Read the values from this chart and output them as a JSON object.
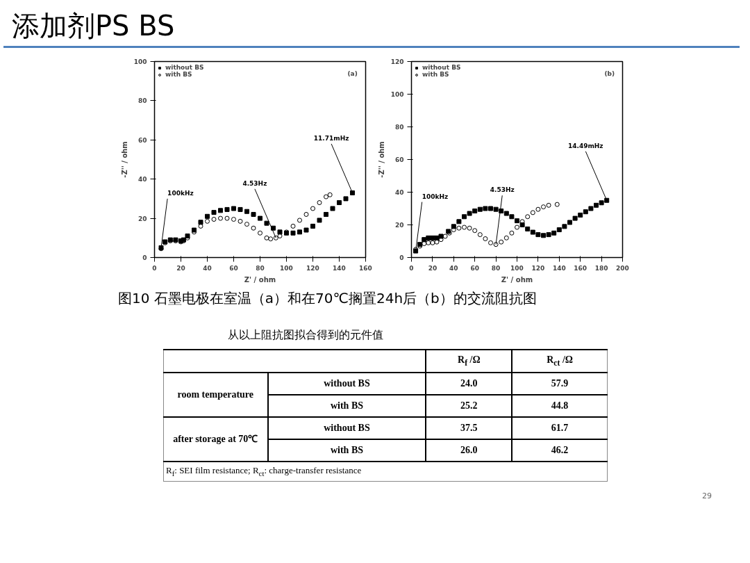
{
  "chart_data": [
    {
      "type": "scatter",
      "title": "添加剂PS BS",
      "xlabel": "Z' / ohm",
      "ylabel": "-Z'' / ohm",
      "xlim": [
        0,
        160
      ],
      "ylim": [
        0,
        100
      ],
      "xticks": [
        0,
        20,
        40,
        60,
        80,
        100,
        120,
        140,
        160
      ],
      "yticks": [
        0,
        20,
        40,
        60,
        80,
        100
      ],
      "grid": false,
      "legend": "top left",
      "series": [
        {
          "name": "without BS",
          "color": "#000000",
          "marker": "square",
          "x": [
            5,
            8,
            12,
            16,
            20,
            22,
            25,
            30,
            35,
            40,
            45,
            50,
            55,
            60,
            65,
            70,
            75,
            80,
            85,
            90,
            95,
            100,
            105,
            110,
            115,
            120,
            125,
            130,
            135,
            140,
            145,
            150
          ],
          "values": [
            5,
            8,
            9,
            9,
            8.5,
            9,
            11,
            14,
            18,
            21,
            23,
            24,
            24.5,
            25,
            24.5,
            23.5,
            22,
            20,
            17.5,
            15,
            13,
            12.5,
            12.5,
            13,
            14,
            16,
            19,
            22,
            25,
            28,
            30,
            33
          ]
        },
        {
          "name": "with BS",
          "color": "#000000",
          "marker": "circle",
          "x": [
            5,
            8,
            12,
            16,
            20,
            22,
            25,
            30,
            35,
            40,
            45,
            50,
            55,
            60,
            65,
            70,
            75,
            80,
            85,
            88,
            92,
            95,
            100,
            105,
            110,
            115,
            120,
            125,
            130,
            133
          ],
          "values": [
            4.5,
            7.5,
            8.5,
            8.5,
            8,
            8.5,
            10,
            13,
            16,
            18.5,
            19.5,
            20,
            20,
            19.5,
            18.5,
            17,
            15,
            12.5,
            10,
            9.5,
            10,
            11,
            13,
            16,
            19,
            22,
            25,
            28,
            31,
            32
          ]
        }
      ],
      "annotations": [
        "(a)",
        {
          "text": "100kHz",
          "x": 5,
          "y": 5
        },
        {
          "text": "4.53Hz",
          "x": 92,
          "y": 10
        },
        {
          "text": "11.71mHz",
          "x": 150,
          "y": 33
        }
      ]
    },
    {
      "type": "scatter",
      "xlabel": "Z' / ohm",
      "ylabel": "-Z'' / ohm",
      "xlim": [
        0,
        200
      ],
      "ylim": [
        0,
        120
      ],
      "xticks": [
        0,
        20,
        40,
        60,
        80,
        100,
        120,
        140,
        160,
        180,
        200
      ],
      "yticks": [
        0,
        20,
        40,
        60,
        80,
        100,
        120
      ],
      "grid": false,
      "legend": "top left",
      "series": [
        {
          "name": "without BS",
          "color": "#000000",
          "marker": "square",
          "x": [
            4,
            8,
            12,
            16,
            20,
            24,
            28,
            35,
            40,
            45,
            50,
            55,
            60,
            65,
            70,
            75,
            80,
            85,
            90,
            95,
            100,
            105,
            110,
            115,
            120,
            125,
            130,
            135,
            140,
            145,
            150,
            155,
            160,
            165,
            170,
            175,
            180,
            185
          ],
          "values": [
            4,
            8,
            11,
            12,
            12,
            12,
            13,
            16,
            19,
            22,
            25,
            27,
            28.5,
            29.5,
            30,
            30,
            29.5,
            28.5,
            27,
            25,
            22.5,
            20,
            17.5,
            15.5,
            14,
            13.5,
            14,
            15,
            17,
            19,
            21.5,
            24,
            26,
            28,
            30,
            32,
            33.5,
            35
          ]
        },
        {
          "name": "with BS",
          "color": "#000000",
          "marker": "circle",
          "x": [
            4,
            8,
            12,
            16,
            20,
            24,
            28,
            32,
            36,
            40,
            45,
            50,
            55,
            60,
            65,
            70,
            75,
            80,
            85,
            90,
            95,
            100,
            105,
            110,
            115,
            120,
            125,
            130,
            138
          ],
          "values": [
            5,
            7,
            8.5,
            9,
            9,
            9.5,
            11,
            13,
            15,
            17,
            18,
            18.5,
            18,
            16.5,
            14,
            11.5,
            9,
            8,
            9.5,
            12,
            15,
            18.5,
            22,
            25,
            27.5,
            29.5,
            31,
            32,
            32.5
          ]
        }
      ],
      "annotations": [
        "(b)",
        {
          "text": "100kHz",
          "x": 4,
          "y": 4
        },
        {
          "text": "4.53Hz",
          "x": 80,
          "y": 8
        },
        {
          "text": "14.49mHz",
          "x": 185,
          "y": 35
        },
        "图10 石墨电极在室温（a）和在70℃搁置24h后（b）的交流阻抗图"
      ]
    },
    {
      "type": "other",
      "title": "从以上阻抗图拟合得到的元件值",
      "categories": [
        "R$_{f}$ /Ω",
        "R$_{ct}$ /Ω"
      ],
      "y2_categories": [
        "room temperature",
        null,
        "after storage at 70℃",
        null
      ],
      "y_categories": [
        "without BS",
        "with BS",
        "without BS",
        "with BS"
      ],
      "cell_labels": [
        [
          "24.0",
          "57.9"
        ],
        [
          "25.2",
          "44.8"
        ],
        [
          "37.5",
          "61.7"
        ],
        [
          "26.0",
          "46.2"
        ]
      ],
      "annotations": [
        "R$_{f}$: SEI film resistance;  R$_{ct}$: charge-transfer resistance",
        "29"
      ]
    }
  ]
}
